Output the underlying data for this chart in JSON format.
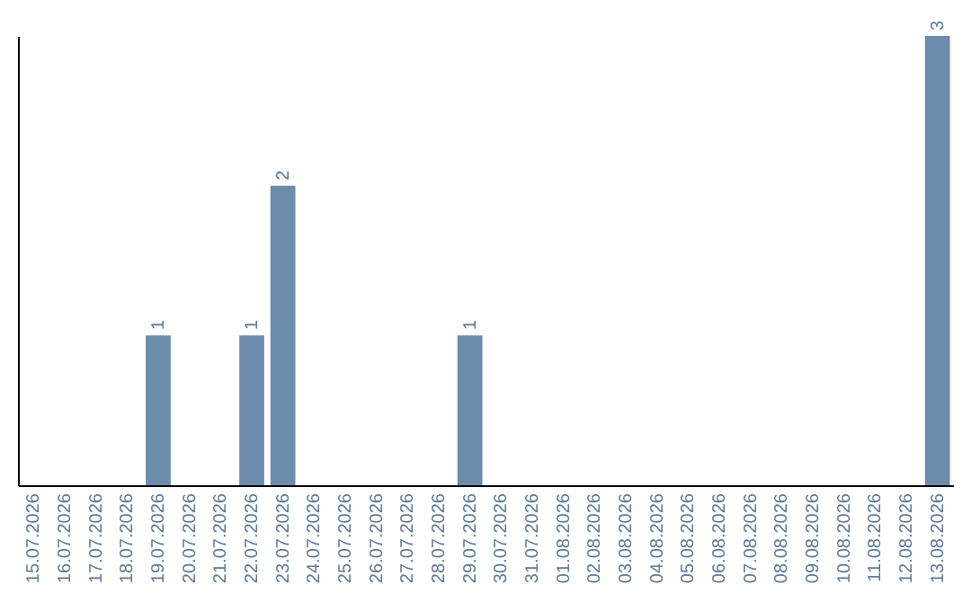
{
  "chart_data": {
    "type": "bar",
    "categories": [
      "15.07.2026",
      "16.07.2026",
      "17.07.2026",
      "18.07.2026",
      "19.07.2026",
      "20.07.2026",
      "21.07.2026",
      "22.07.2026",
      "23.07.2026",
      "24.07.2026",
      "25.07.2026",
      "26.07.2026",
      "27.07.2026",
      "28.07.2026",
      "29.07.2026",
      "30.07.2026",
      "31.07.2026",
      "01.08.2026",
      "02.08.2026",
      "03.08.2026",
      "04.08.2026",
      "05.08.2026",
      "06.08.2026",
      "07.08.2026",
      "08.08.2026",
      "09.08.2026",
      "10.08.2026",
      "11.08.2026",
      "12.08.2026",
      "13.08.2026"
    ],
    "values": [
      0,
      0,
      0,
      0,
      1,
      0,
      0,
      1,
      2,
      0,
      0,
      0,
      0,
      0,
      1,
      0,
      0,
      0,
      0,
      0,
      0,
      0,
      0,
      0,
      0,
      0,
      0,
      0,
      0,
      3
    ],
    "value_labels": [
      null,
      null,
      null,
      null,
      "1",
      null,
      null,
      "1",
      "2",
      null,
      null,
      null,
      null,
      null,
      "1",
      null,
      null,
      null,
      null,
      null,
      null,
      null,
      null,
      null,
      null,
      null,
      null,
      null,
      null,
      "3"
    ],
    "color": "#6c8cac"
  }
}
